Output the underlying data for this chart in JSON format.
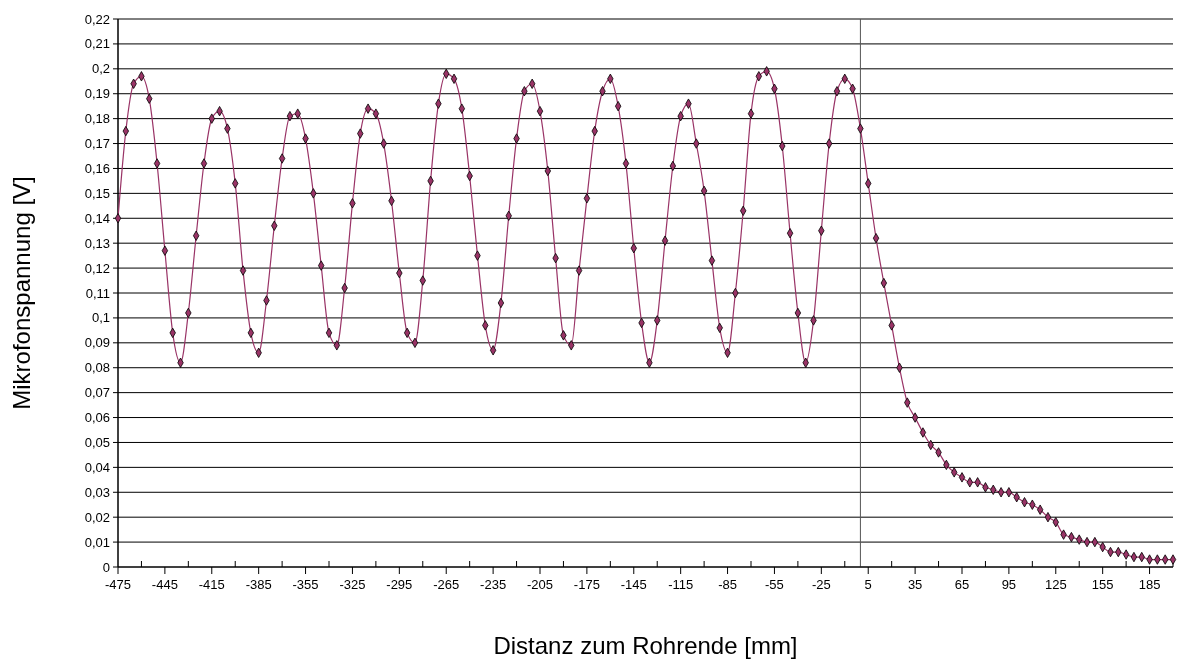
{
  "chart_data": {
    "type": "line",
    "xlabel": "Distanz zum Rohrende [mm]",
    "ylabel": "Mikrofonspannung [V]",
    "x": [
      -475,
      -470,
      -465,
      -460,
      -455,
      -450,
      -445,
      -440,
      -435,
      -430,
      -425,
      -420,
      -415,
      -410,
      -405,
      -400,
      -395,
      -390,
      -385,
      -380,
      -375,
      -370,
      -365,
      -360,
      -355,
      -350,
      -345,
      -340,
      -335,
      -330,
      -325,
      -320,
      -315,
      -310,
      -305,
      -300,
      -295,
      -290,
      -285,
      -280,
      -275,
      -270,
      -265,
      -260,
      -255,
      -250,
      -245,
      -240,
      -235,
      -230,
      -225,
      -220,
      -215,
      -210,
      -205,
      -200,
      -195,
      -190,
      -185,
      -180,
      -175,
      -170,
      -165,
      -160,
      -155,
      -150,
      -145,
      -140,
      -135,
      -130,
      -125,
      -120,
      -115,
      -110,
      -105,
      -100,
      -95,
      -90,
      -85,
      -80,
      -75,
      -70,
      -65,
      -60,
      -55,
      -50,
      -45,
      -40,
      -35,
      -30,
      -25,
      -20,
      -15,
      -10,
      -5,
      0,
      5,
      10,
      15,
      20,
      25,
      30,
      35,
      40,
      45,
      50,
      55,
      60,
      65,
      70,
      75,
      80,
      85,
      90,
      95,
      100,
      105,
      110,
      115,
      120,
      125,
      130,
      135,
      140,
      145,
      150,
      155,
      160,
      165,
      170,
      175,
      180,
      185,
      190,
      195,
      200
    ],
    "series": [
      {
        "color": "#993366",
        "values": [
          0.14,
          0.175,
          0.194,
          0.197,
          0.188,
          0.162,
          0.127,
          0.094,
          0.082,
          0.102,
          0.133,
          0.162,
          0.18,
          0.183,
          0.176,
          0.154,
          0.119,
          0.094,
          0.086,
          0.107,
          0.137,
          0.164,
          0.181,
          0.182,
          0.172,
          0.15,
          0.121,
          0.094,
          0.089,
          0.112,
          0.146,
          0.174,
          0.184,
          0.182,
          0.17,
          0.147,
          0.118,
          0.094,
          0.09,
          0.115,
          0.155,
          0.186,
          0.198,
          0.196,
          0.184,
          0.157,
          0.125,
          0.097,
          0.087,
          0.106,
          0.141,
          0.172,
          0.191,
          0.194,
          0.183,
          0.159,
          0.124,
          0.093,
          0.089,
          0.119,
          0.148,
          0.175,
          0.191,
          0.196,
          0.185,
          0.162,
          0.128,
          0.098,
          0.082,
          0.099,
          0.131,
          0.161,
          0.181,
          0.186,
          0.17,
          0.151,
          0.123,
          0.096,
          0.086,
          0.11,
          0.143,
          0.182,
          0.197,
          0.199,
          0.192,
          0.169,
          0.134,
          0.102,
          0.082,
          0.099,
          0.135,
          0.17,
          0.191,
          0.196,
          0.192,
          0.176,
          0.154,
          0.132,
          0.114,
          0.097,
          0.08,
          0.066,
          0.06,
          0.054,
          0.049,
          0.046,
          0.041,
          0.038,
          0.036,
          0.034,
          0.034,
          0.032,
          0.031,
          0.03,
          0.03,
          0.028,
          0.026,
          0.025,
          0.023,
          0.02,
          0.018,
          0.013,
          0.012,
          0.011,
          0.01,
          0.01,
          0.008,
          0.006,
          0.006,
          0.005,
          0.004,
          0.004,
          0.003,
          0.003,
          0.003,
          0.003
        ]
      }
    ],
    "xlim": [
      -475,
      200
    ],
    "xticks": [
      -475,
      {
        "value": -460,
        "label": null
      },
      -445,
      {
        "value": -430,
        "label": null
      },
      -415,
      {
        "value": -400,
        "label": null
      },
      -385,
      {
        "value": -370,
        "label": null
      },
      -355,
      {
        "value": -340,
        "label": null
      },
      -325,
      {
        "value": -310,
        "label": null
      },
      -295,
      {
        "value": -280,
        "label": null
      },
      -265,
      {
        "value": -250,
        "label": null
      },
      -235,
      {
        "value": -220,
        "label": null
      },
      -205,
      {
        "value": -190,
        "label": null
      },
      -175,
      {
        "value": -160,
        "label": null
      },
      -145,
      {
        "value": -130,
        "label": null
      },
      -115,
      {
        "value": -100,
        "label": null
      },
      -85,
      {
        "value": -70,
        "label": null
      },
      -55,
      {
        "value": -40,
        "label": null
      },
      -25,
      {
        "value": -10,
        "label": null
      },
      5,
      {
        "value": 20,
        "label": null
      },
      35,
      {
        "value": 50,
        "label": null
      },
      65,
      {
        "value": 80,
        "label": null
      },
      95,
      {
        "value": 110,
        "label": null
      },
      125,
      {
        "value": 140,
        "label": null
      },
      155,
      {
        "value": 170,
        "label": null
      },
      185,
      {
        "value": 200,
        "label": null
      }
    ],
    "ylim": [
      0,
      0.22
    ],
    "yticks": [
      0,
      {
        "value": 0.01,
        "label": "0,01"
      },
      {
        "value": 0.02,
        "label": "0,02"
      },
      {
        "value": 0.03,
        "label": "0,03"
      },
      {
        "value": 0.04,
        "label": "0,04"
      },
      {
        "value": 0.05,
        "label": "0,05"
      },
      {
        "value": 0.06,
        "label": "0,06"
      },
      {
        "value": 0.07,
        "label": "0,07"
      },
      {
        "value": 0.08,
        "label": "0,08"
      },
      {
        "value": 0.09,
        "label": "0,09"
      },
      {
        "value": 0.1,
        "label": "0,1"
      },
      {
        "value": 0.11,
        "label": "0,11"
      },
      {
        "value": 0.12,
        "label": "0,12"
      },
      {
        "value": 0.13,
        "label": "0,13"
      },
      {
        "value": 0.14,
        "label": "0,14"
      },
      {
        "value": 0.15,
        "label": "0,15"
      },
      {
        "value": 0.16,
        "label": "0,16"
      },
      {
        "value": 0.17,
        "label": "0,17"
      },
      {
        "value": 0.18,
        "label": "0,18"
      },
      {
        "value": 0.19,
        "label": "0,19"
      },
      {
        "value": 0.2,
        "label": "0,2"
      },
      {
        "value": 0.21,
        "label": "0,21"
      },
      {
        "value": 0.22,
        "label": "0,22"
      }
    ],
    "grid": "y",
    "marker": "diamond",
    "ref_lines": [
      {
        "axis": "x",
        "value": 0,
        "color": "#555555"
      }
    ]
  }
}
